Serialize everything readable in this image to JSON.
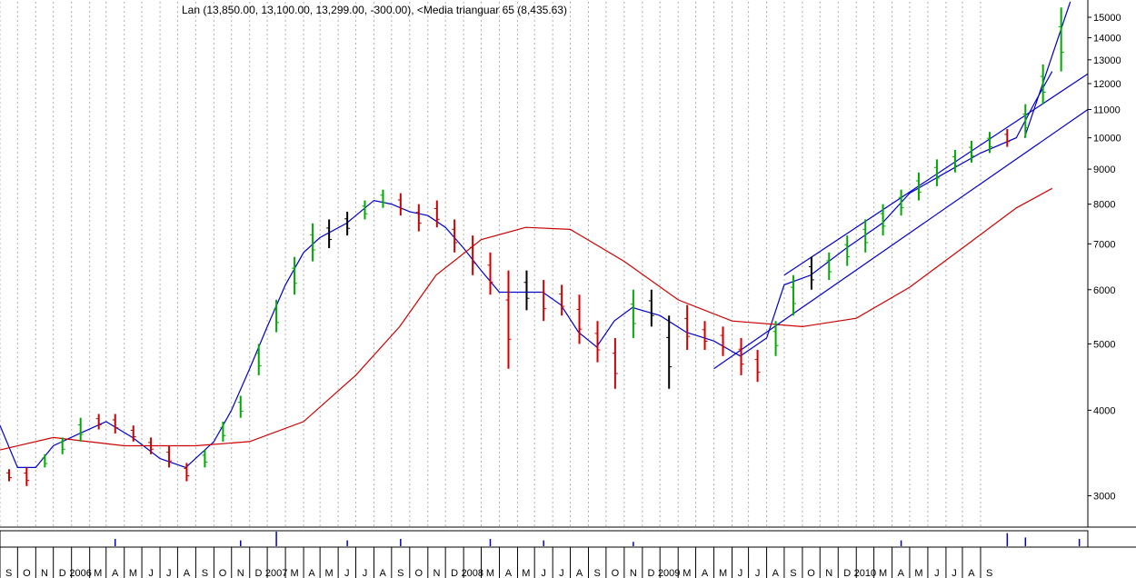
{
  "chart_data": {
    "type": "line",
    "title": "Lan (13,850.00, 13,100.00, 13,299.00, -300.00), <Media trianguar  65 (8,435.63)",
    "y_axis": {
      "scale": "log",
      "range": [
        2700,
        15800
      ],
      "ticks": [
        "3000",
        "4000",
        "5000",
        "6000",
        "7000",
        "8000",
        "9000",
        "10000",
        "11000",
        "12000",
        "13000",
        "14000",
        "15000"
      ],
      "position": "right"
    },
    "x_axis": {
      "start": "2005-09",
      "end": "2010-10",
      "labels": [
        "S",
        "O",
        "N",
        "D",
        "2006",
        "M",
        "A",
        "M",
        "J",
        "J",
        "A",
        "S",
        "O",
        "N",
        "D",
        "2007",
        "M",
        "A",
        "M",
        "J",
        "J",
        "A",
        "S",
        "O",
        "N",
        "D",
        "2008",
        "M",
        "A",
        "M",
        "J",
        "J",
        "A",
        "S",
        "O",
        "N",
        "D",
        "2009",
        "M",
        "A",
        "M",
        "J",
        "J",
        "A",
        "S",
        "O",
        "N",
        "D",
        "2010",
        "M",
        "A",
        "M",
        "J",
        "J",
        "A",
        "S"
      ]
    },
    "grid": "vertical dotted",
    "series": [
      {
        "type": "line",
        "color": "#0000cc",
        "points": [
          [
            "2005-09-01",
            3800
          ],
          [
            "2005-10-01",
            3300
          ],
          [
            "2005-11-01",
            3300
          ],
          [
            "2005-12-01",
            3550
          ],
          [
            "2006-01-15",
            3700
          ],
          [
            "2006-03-01",
            3850
          ],
          [
            "2006-04-15",
            3650
          ],
          [
            "2006-06-01",
            3400
          ],
          [
            "2006-07-15",
            3300
          ],
          [
            "2006-09-01",
            3600
          ],
          [
            "2006-10-01",
            4000
          ],
          [
            "2006-11-01",
            4600
          ],
          [
            "2006-12-01",
            5300
          ],
          [
            "2007-01-01",
            6100
          ],
          [
            "2007-02-01",
            6800
          ],
          [
            "2007-03-01",
            7150
          ],
          [
            "2007-04-15",
            7500
          ],
          [
            "2007-06-01",
            8100
          ],
          [
            "2007-07-01",
            8000
          ],
          [
            "2007-08-01",
            7800
          ],
          [
            "2007-09-01",
            7700
          ],
          [
            "2007-10-01",
            7400
          ],
          [
            "2007-11-01",
            6900
          ],
          [
            "2007-12-01",
            6400
          ],
          [
            "2008-01-01",
            5950
          ],
          [
            "2008-02-01",
            5950
          ],
          [
            "2008-03-15",
            5950
          ],
          [
            "2008-04-15",
            5700
          ],
          [
            "2008-05-15",
            5200
          ],
          [
            "2008-06-15",
            4950
          ],
          [
            "2008-07-15",
            5400
          ],
          [
            "2008-08-15",
            5650
          ],
          [
            "2008-10-01",
            5500
          ],
          [
            "2008-11-15",
            5200
          ],
          [
            "2009-01-01",
            5050
          ],
          [
            "2009-02-15",
            4800
          ],
          [
            "2009-04-01",
            5100
          ],
          [
            "2009-05-01",
            6100
          ],
          [
            "2009-06-15",
            6300
          ],
          [
            "2009-08-15",
            6900
          ],
          [
            "2009-10-15",
            7500
          ],
          [
            "2009-12-01",
            8300
          ],
          [
            "2010-02-01",
            8900
          ],
          [
            "2010-04-01",
            9500
          ],
          [
            "2010-06-01",
            10000
          ],
          [
            "2010-07-01",
            11200
          ],
          [
            "2010-08-01",
            12500
          ]
        ]
      },
      {
        "name": "Media trianguar  65",
        "type": "line",
        "color": "#cc0000",
        "points": [
          [
            "2005-09-01",
            3500
          ],
          [
            "2005-12-01",
            3650
          ],
          [
            "2006-04-01",
            3550
          ],
          [
            "2006-08-01",
            3550
          ],
          [
            "2006-11-01",
            3600
          ],
          [
            "2007-02-01",
            3850
          ],
          [
            "2007-05-01",
            4500
          ],
          [
            "2007-07-15",
            5300
          ],
          [
            "2007-09-15",
            6300
          ],
          [
            "2007-12-01",
            7100
          ],
          [
            "2008-02-15",
            7400
          ],
          [
            "2008-05-01",
            7350
          ],
          [
            "2008-08-01",
            6600
          ],
          [
            "2008-11-01",
            5800
          ],
          [
            "2009-02-01",
            5400
          ],
          [
            "2009-06-01",
            5300
          ],
          [
            "2009-09-01",
            5450
          ],
          [
            "2009-12-01",
            6050
          ],
          [
            "2010-03-01",
            6900
          ],
          [
            "2010-06-01",
            7900
          ],
          [
            "2010-08-01",
            8435.63
          ]
        ]
      },
      {
        "type": "line",
        "color": "#0000cc",
        "points": [
          [
            "2009-01-01",
            4600
          ],
          [
            "2010-10-01",
            11000
          ]
        ]
      },
      {
        "type": "line",
        "color": "#0000cc",
        "points": [
          [
            "2009-05-01",
            6300
          ],
          [
            "2010-10-01",
            12400
          ]
        ]
      },
      {
        "type": "line",
        "color": "#0000cc",
        "points": [
          [
            "2010-06-15",
            10000
          ],
          [
            "2010-09-01",
            15800
          ]
        ]
      }
    ],
    "price_bars": [
      [
        "2005-09-01",
        3150,
        3280,
        "#cc0000"
      ],
      [
        "2005-10-01",
        3100,
        3300,
        "#cc0000"
      ],
      [
        "2005-11-01",
        3300,
        3450,
        "#00aa00"
      ],
      [
        "2005-12-01",
        3450,
        3650,
        "#00aa00"
      ],
      [
        "2006-01-01",
        3600,
        3900,
        "#00aa00"
      ],
      [
        "2006-02-01",
        3750,
        3950,
        "#cc0000"
      ],
      [
        "2006-03-01",
        3700,
        3950,
        "#cc0000"
      ],
      [
        "2006-04-01",
        3600,
        3800,
        "#cc0000"
      ],
      [
        "2006-05-01",
        3450,
        3650,
        "#cc0000"
      ],
      [
        "2006-06-01",
        3300,
        3550,
        "#cc0000"
      ],
      [
        "2006-07-01",
        3150,
        3350,
        "#cc0000"
      ],
      [
        "2006-08-01",
        3300,
        3500,
        "#00aa00"
      ],
      [
        "2006-09-01",
        3600,
        3850,
        "#00aa00"
      ],
      [
        "2006-10-01",
        3900,
        4200,
        "#00aa00"
      ],
      [
        "2006-11-01",
        4500,
        5000,
        "#00aa00"
      ],
      [
        "2006-12-01",
        5200,
        5800,
        "#00aa00"
      ],
      [
        "2007-01-01",
        5900,
        6700,
        "#00aa00"
      ],
      [
        "2007-02-01",
        6600,
        7500,
        "#00aa00"
      ],
      [
        "2007-03-01",
        6900,
        7600,
        "#000000"
      ],
      [
        "2007-04-01",
        7200,
        7800,
        "#000000"
      ],
      [
        "2007-05-01",
        7600,
        8100,
        "#00aa00"
      ],
      [
        "2007-06-01",
        7900,
        8400,
        "#00aa00"
      ],
      [
        "2007-07-01",
        7700,
        8300,
        "#cc0000"
      ],
      [
        "2007-08-01",
        7300,
        8000,
        "#cc0000"
      ],
      [
        "2007-09-01",
        7400,
        8100,
        "#cc0000"
      ],
      [
        "2007-10-01",
        6800,
        7600,
        "#cc0000"
      ],
      [
        "2007-11-01",
        6300,
        7200,
        "#cc0000"
      ],
      [
        "2007-12-01",
        5900,
        6800,
        "#cc0000"
      ],
      [
        "2008-01-01",
        4600,
        6400,
        "#cc0000"
      ],
      [
        "2008-02-01",
        5600,
        6400,
        "#000000"
      ],
      [
        "2008-03-01",
        5400,
        6200,
        "#cc0000"
      ],
      [
        "2008-04-01",
        5500,
        6100,
        "#cc0000"
      ],
      [
        "2008-05-01",
        5000,
        5900,
        "#cc0000"
      ],
      [
        "2008-06-01",
        4700,
        5400,
        "#cc0000"
      ],
      [
        "2008-07-01",
        4300,
        5100,
        "#cc0000"
      ],
      [
        "2008-08-01",
        5100,
        6000,
        "#00aa00"
      ],
      [
        "2008-09-01",
        5300,
        6000,
        "#000000"
      ],
      [
        "2008-10-01",
        4300,
        5500,
        "#000000"
      ],
      [
        "2008-11-01",
        4900,
        5700,
        "#cc0000"
      ],
      [
        "2008-12-01",
        4900,
        5400,
        "#cc0000"
      ],
      [
        "2009-01-01",
        4800,
        5300,
        "#cc0000"
      ],
      [
        "2009-02-01",
        4500,
        5100,
        "#cc0000"
      ],
      [
        "2009-03-01",
        4400,
        4900,
        "#cc0000"
      ],
      [
        "2009-04-01",
        4800,
        5400,
        "#00aa00"
      ],
      [
        "2009-05-01",
        5500,
        6300,
        "#00aa00"
      ],
      [
        "2009-06-01",
        6000,
        6700,
        "#000000"
      ],
      [
        "2009-07-01",
        6200,
        6800,
        "#00aa00"
      ],
      [
        "2009-08-01",
        6500,
        7200,
        "#00aa00"
      ],
      [
        "2009-09-01",
        6800,
        7600,
        "#00aa00"
      ],
      [
        "2009-10-01",
        7200,
        8000,
        "#00aa00"
      ],
      [
        "2009-11-01",
        7700,
        8400,
        "#00aa00"
      ],
      [
        "2009-12-01",
        8100,
        8900,
        "#00aa00"
      ],
      [
        "2010-01-01",
        8500,
        9300,
        "#00aa00"
      ],
      [
        "2010-02-01",
        8900,
        9600,
        "#00aa00"
      ],
      [
        "2010-03-01",
        9200,
        9900,
        "#00aa00"
      ],
      [
        "2010-04-01",
        9500,
        10200,
        "#00aa00"
      ],
      [
        "2010-05-01",
        9700,
        10300,
        "#cc0000"
      ],
      [
        "2010-06-01",
        10000,
        11200,
        "#00aa00"
      ],
      [
        "2010-07-01",
        11200,
        12800,
        "#00aa00"
      ],
      [
        "2010-08-01",
        12500,
        15500,
        "#00aa00"
      ]
    ],
    "volume_bars": [
      [
        "2006-03-01",
        0.5
      ],
      [
        "2006-10-01",
        0.4
      ],
      [
        "2006-12-01",
        1.0
      ],
      [
        "2007-04-01",
        0.4
      ],
      [
        "2007-07-01",
        0.5
      ],
      [
        "2007-12-01",
        0.5
      ],
      [
        "2008-03-01",
        0.4
      ],
      [
        "2008-08-01",
        0.3
      ],
      [
        "2009-11-01",
        0.4
      ],
      [
        "2010-05-01",
        0.9
      ],
      [
        "2010-06-01",
        0.6
      ],
      [
        "2010-09-01",
        0.5
      ]
    ]
  }
}
